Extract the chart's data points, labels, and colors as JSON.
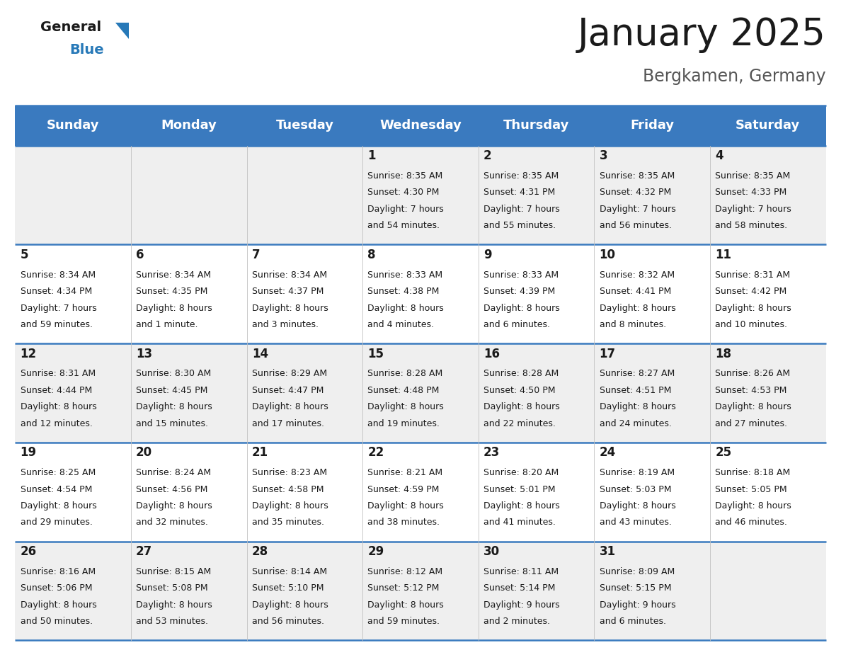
{
  "title": "January 2025",
  "subtitle": "Bergkamen, Germany",
  "header_bg": "#3a7abf",
  "header_text": "#ffffff",
  "day_names": [
    "Sunday",
    "Monday",
    "Tuesday",
    "Wednesday",
    "Thursday",
    "Friday",
    "Saturday"
  ],
  "row_bg_odd": "#efefef",
  "row_bg_even": "#ffffff",
  "divider_color": "#3a7abf",
  "text_color": "#1a1a1a",
  "logo_general_color": "#1a1a1a",
  "logo_blue_color": "#2779b8",
  "logo_triangle_color": "#2779b8",
  "title_color": "#1a1a1a",
  "subtitle_color": "#555555",
  "title_fontsize": 38,
  "subtitle_fontsize": 17,
  "header_fontsize": 13,
  "day_num_fontsize": 12,
  "cell_text_fontsize": 9,
  "days": [
    {
      "day": 1,
      "col": 3,
      "row": 0,
      "sunrise": "8:35 AM",
      "sunset": "4:30 PM",
      "daylight_line1": "Daylight: 7 hours",
      "daylight_line2": "and 54 minutes."
    },
    {
      "day": 2,
      "col": 4,
      "row": 0,
      "sunrise": "8:35 AM",
      "sunset": "4:31 PM",
      "daylight_line1": "Daylight: 7 hours",
      "daylight_line2": "and 55 minutes."
    },
    {
      "day": 3,
      "col": 5,
      "row": 0,
      "sunrise": "8:35 AM",
      "sunset": "4:32 PM",
      "daylight_line1": "Daylight: 7 hours",
      "daylight_line2": "and 56 minutes."
    },
    {
      "day": 4,
      "col": 6,
      "row": 0,
      "sunrise": "8:35 AM",
      "sunset": "4:33 PM",
      "daylight_line1": "Daylight: 7 hours",
      "daylight_line2": "and 58 minutes."
    },
    {
      "day": 5,
      "col": 0,
      "row": 1,
      "sunrise": "8:34 AM",
      "sunset": "4:34 PM",
      "daylight_line1": "Daylight: 7 hours",
      "daylight_line2": "and 59 minutes."
    },
    {
      "day": 6,
      "col": 1,
      "row": 1,
      "sunrise": "8:34 AM",
      "sunset": "4:35 PM",
      "daylight_line1": "Daylight: 8 hours",
      "daylight_line2": "and 1 minute."
    },
    {
      "day": 7,
      "col": 2,
      "row": 1,
      "sunrise": "8:34 AM",
      "sunset": "4:37 PM",
      "daylight_line1": "Daylight: 8 hours",
      "daylight_line2": "and 3 minutes."
    },
    {
      "day": 8,
      "col": 3,
      "row": 1,
      "sunrise": "8:33 AM",
      "sunset": "4:38 PM",
      "daylight_line1": "Daylight: 8 hours",
      "daylight_line2": "and 4 minutes."
    },
    {
      "day": 9,
      "col": 4,
      "row": 1,
      "sunrise": "8:33 AM",
      "sunset": "4:39 PM",
      "daylight_line1": "Daylight: 8 hours",
      "daylight_line2": "and 6 minutes."
    },
    {
      "day": 10,
      "col": 5,
      "row": 1,
      "sunrise": "8:32 AM",
      "sunset": "4:41 PM",
      "daylight_line1": "Daylight: 8 hours",
      "daylight_line2": "and 8 minutes."
    },
    {
      "day": 11,
      "col": 6,
      "row": 1,
      "sunrise": "8:31 AM",
      "sunset": "4:42 PM",
      "daylight_line1": "Daylight: 8 hours",
      "daylight_line2": "and 10 minutes."
    },
    {
      "day": 12,
      "col": 0,
      "row": 2,
      "sunrise": "8:31 AM",
      "sunset": "4:44 PM",
      "daylight_line1": "Daylight: 8 hours",
      "daylight_line2": "and 12 minutes."
    },
    {
      "day": 13,
      "col": 1,
      "row": 2,
      "sunrise": "8:30 AM",
      "sunset": "4:45 PM",
      "daylight_line1": "Daylight: 8 hours",
      "daylight_line2": "and 15 minutes."
    },
    {
      "day": 14,
      "col": 2,
      "row": 2,
      "sunrise": "8:29 AM",
      "sunset": "4:47 PM",
      "daylight_line1": "Daylight: 8 hours",
      "daylight_line2": "and 17 minutes."
    },
    {
      "day": 15,
      "col": 3,
      "row": 2,
      "sunrise": "8:28 AM",
      "sunset": "4:48 PM",
      "daylight_line1": "Daylight: 8 hours",
      "daylight_line2": "and 19 minutes."
    },
    {
      "day": 16,
      "col": 4,
      "row": 2,
      "sunrise": "8:28 AM",
      "sunset": "4:50 PM",
      "daylight_line1": "Daylight: 8 hours",
      "daylight_line2": "and 22 minutes."
    },
    {
      "day": 17,
      "col": 5,
      "row": 2,
      "sunrise": "8:27 AM",
      "sunset": "4:51 PM",
      "daylight_line1": "Daylight: 8 hours",
      "daylight_line2": "and 24 minutes."
    },
    {
      "day": 18,
      "col": 6,
      "row": 2,
      "sunrise": "8:26 AM",
      "sunset": "4:53 PM",
      "daylight_line1": "Daylight: 8 hours",
      "daylight_line2": "and 27 minutes."
    },
    {
      "day": 19,
      "col": 0,
      "row": 3,
      "sunrise": "8:25 AM",
      "sunset": "4:54 PM",
      "daylight_line1": "Daylight: 8 hours",
      "daylight_line2": "and 29 minutes."
    },
    {
      "day": 20,
      "col": 1,
      "row": 3,
      "sunrise": "8:24 AM",
      "sunset": "4:56 PM",
      "daylight_line1": "Daylight: 8 hours",
      "daylight_line2": "and 32 minutes."
    },
    {
      "day": 21,
      "col": 2,
      "row": 3,
      "sunrise": "8:23 AM",
      "sunset": "4:58 PM",
      "daylight_line1": "Daylight: 8 hours",
      "daylight_line2": "and 35 minutes."
    },
    {
      "day": 22,
      "col": 3,
      "row": 3,
      "sunrise": "8:21 AM",
      "sunset": "4:59 PM",
      "daylight_line1": "Daylight: 8 hours",
      "daylight_line2": "and 38 minutes."
    },
    {
      "day": 23,
      "col": 4,
      "row": 3,
      "sunrise": "8:20 AM",
      "sunset": "5:01 PM",
      "daylight_line1": "Daylight: 8 hours",
      "daylight_line2": "and 41 minutes."
    },
    {
      "day": 24,
      "col": 5,
      "row": 3,
      "sunrise": "8:19 AM",
      "sunset": "5:03 PM",
      "daylight_line1": "Daylight: 8 hours",
      "daylight_line2": "and 43 minutes."
    },
    {
      "day": 25,
      "col": 6,
      "row": 3,
      "sunrise": "8:18 AM",
      "sunset": "5:05 PM",
      "daylight_line1": "Daylight: 8 hours",
      "daylight_line2": "and 46 minutes."
    },
    {
      "day": 26,
      "col": 0,
      "row": 4,
      "sunrise": "8:16 AM",
      "sunset": "5:06 PM",
      "daylight_line1": "Daylight: 8 hours",
      "daylight_line2": "and 50 minutes."
    },
    {
      "day": 27,
      "col": 1,
      "row": 4,
      "sunrise": "8:15 AM",
      "sunset": "5:08 PM",
      "daylight_line1": "Daylight: 8 hours",
      "daylight_line2": "and 53 minutes."
    },
    {
      "day": 28,
      "col": 2,
      "row": 4,
      "sunrise": "8:14 AM",
      "sunset": "5:10 PM",
      "daylight_line1": "Daylight: 8 hours",
      "daylight_line2": "and 56 minutes."
    },
    {
      "day": 29,
      "col": 3,
      "row": 4,
      "sunrise": "8:12 AM",
      "sunset": "5:12 PM",
      "daylight_line1": "Daylight: 8 hours",
      "daylight_line2": "and 59 minutes."
    },
    {
      "day": 30,
      "col": 4,
      "row": 4,
      "sunrise": "8:11 AM",
      "sunset": "5:14 PM",
      "daylight_line1": "Daylight: 9 hours",
      "daylight_line2": "and 2 minutes."
    },
    {
      "day": 31,
      "col": 5,
      "row": 4,
      "sunrise": "8:09 AM",
      "sunset": "5:15 PM",
      "daylight_line1": "Daylight: 9 hours",
      "daylight_line2": "and 6 minutes."
    }
  ]
}
